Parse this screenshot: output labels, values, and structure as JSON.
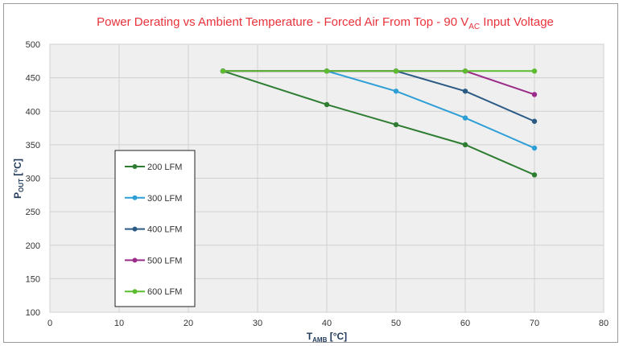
{
  "chart_data": {
    "type": "line",
    "title": {
      "pre": "Power Derating vs Ambient Temperature - Forced Air From Top - 90 V",
      "sub": "AC",
      "post": " Input Voltage"
    },
    "xlabel": {
      "main": "T",
      "sub": "AMB",
      "post": " [°C]"
    },
    "ylabel": {
      "main": "P",
      "sub": "OUT",
      "post": " [°C]"
    },
    "xlim": [
      0,
      80
    ],
    "ylim": [
      100,
      500
    ],
    "xticks": [
      0,
      10,
      20,
      30,
      40,
      50,
      60,
      70,
      80
    ],
    "yticks": [
      100,
      150,
      200,
      250,
      300,
      350,
      400,
      450,
      500
    ],
    "grid": true,
    "legend_position": "lower-left",
    "series": [
      {
        "name": "200 LFM",
        "color": "#2e7d32",
        "x": [
          25,
          40,
          50,
          60,
          70
        ],
        "y": [
          460,
          410,
          380,
          350,
          305
        ]
      },
      {
        "name": "300 LFM",
        "color": "#2e9fd6",
        "x": [
          25,
          40,
          50,
          60,
          70
        ],
        "y": [
          460,
          460,
          430,
          390,
          345
        ]
      },
      {
        "name": "400 LFM",
        "color": "#2b5b84",
        "x": [
          25,
          40,
          50,
          60,
          70
        ],
        "y": [
          460,
          460,
          460,
          430,
          385
        ]
      },
      {
        "name": "500 LFM",
        "color": "#9b2c8a",
        "x": [
          25,
          40,
          50,
          60,
          70
        ],
        "y": [
          460,
          460,
          460,
          460,
          425
        ]
      },
      {
        "name": "600 LFM",
        "color": "#5dbb2f",
        "x": [
          25,
          40,
          50,
          60,
          70
        ],
        "y": [
          460,
          460,
          460,
          460,
          460
        ]
      }
    ]
  }
}
